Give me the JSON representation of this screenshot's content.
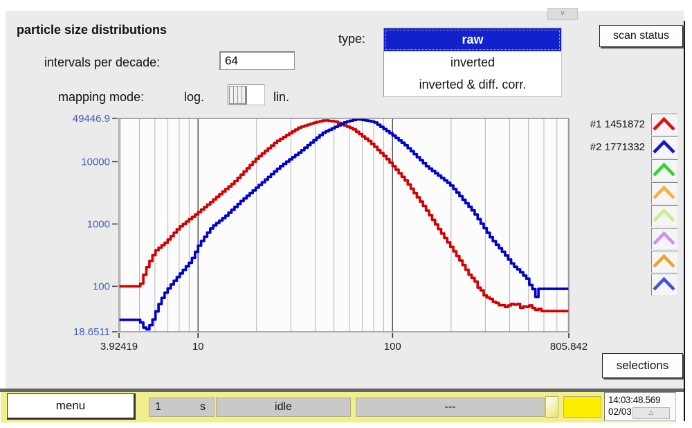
{
  "header": {
    "title": "particle size distributions",
    "intervals_label": "intervals per decade:",
    "intervals_value": "64",
    "mapping_label": "mapping mode:",
    "mapping_left": "log.",
    "mapping_right": "lin.",
    "type_label": "type:",
    "type_options": [
      {
        "label": "raw",
        "selected": true
      },
      {
        "label": "inverted",
        "selected": false
      },
      {
        "label": "inverted & diff. corr.",
        "selected": false
      }
    ],
    "scan_status_button": "scan status",
    "scroll_chevron": "∨"
  },
  "legend": {
    "entries": [
      {
        "label": "#1 1451872",
        "color": "#dd1111"
      },
      {
        "label": "#2 1771332",
        "color": "#1515c0"
      },
      {
        "label": "",
        "color": "#2fd52f"
      },
      {
        "label": "",
        "color": "#f5b042"
      },
      {
        "label": "",
        "color": "#cdeb8f"
      },
      {
        "label": "",
        "color": "#cf8ef0"
      },
      {
        "label": "",
        "color": "#eaa42c"
      },
      {
        "label": "",
        "color": "#4253d8"
      }
    ]
  },
  "selections_button": "selections",
  "statusbar": {
    "menu_button": "menu",
    "interval_value": "1",
    "interval_unit": "s",
    "state_value": "idle",
    "info_value": "---",
    "time": "14:03:48.569",
    "date": "02/03",
    "collapse_glyph": "△"
  },
  "chart_data": {
    "type": "line",
    "subtype": "stepped-histogram",
    "x_scale": "log",
    "y_scale": "log",
    "x_range": [
      3.92419,
      805.842
    ],
    "y_range": [
      18.6511,
      49446.9
    ],
    "x_tick_values": [
      3.92419,
      10,
      100,
      805.842
    ],
    "x_tick_labels": [
      "3.92419",
      "10",
      "100",
      "805.842"
    ],
    "y_tick_values": [
      49446.9,
      10000,
      1000,
      100,
      18.6511
    ],
    "y_tick_labels": [
      "49446.9",
      "10000",
      "1000",
      "100",
      "18.6511"
    ],
    "grid": "vertical log decades, minors gray, majors dark at 10 and 100",
    "legend_position": "right",
    "steps_per_decade": 64,
    "axis_label_color_y": "#4060bb",
    "axis_label_color_x": "#1a1a1a",
    "series": [
      {
        "name": "#1 1451872",
        "color": "#d40000",
        "points": [
          [
            3.92419,
            100
          ],
          [
            5.05,
            100
          ],
          [
            5.2,
            118
          ],
          [
            5.35,
            160
          ],
          [
            5.6,
            225
          ],
          [
            6.1,
            370
          ],
          [
            6.9,
            510
          ],
          [
            8.1,
            890
          ],
          [
            10,
            1480
          ],
          [
            12.2,
            2480
          ],
          [
            15.6,
            4800
          ],
          [
            20,
            10900
          ],
          [
            25.5,
            21000
          ],
          [
            33.5,
            35400
          ],
          [
            40.2,
            42500
          ],
          [
            45.3,
            46200
          ],
          [
            51.4,
            44000
          ],
          [
            63.2,
            33600
          ],
          [
            77.5,
            20700
          ],
          [
            95,
            10900
          ],
          [
            119,
            4800
          ],
          [
            144,
            2070
          ],
          [
            174,
            845
          ],
          [
            208,
            373
          ],
          [
            256,
            141
          ],
          [
            301,
            74
          ],
          [
            341,
            55
          ],
          [
            385,
            48
          ],
          [
            434,
            53
          ],
          [
            471,
            44
          ],
          [
            509,
            49
          ],
          [
            538,
            42
          ],
          [
            563,
            46
          ],
          [
            585,
            40
          ],
          [
            805.842,
            40
          ]
        ]
      },
      {
        "name": "#2 1771332",
        "color": "#0000cc",
        "points": [
          [
            3.92419,
            29
          ],
          [
            5.05,
            29
          ],
          [
            5.3,
            22
          ],
          [
            5.5,
            20
          ],
          [
            5.85,
            26
          ],
          [
            6.3,
            48
          ],
          [
            6.75,
            74
          ],
          [
            7.2,
            98
          ],
          [
            7.7,
            127
          ],
          [
            8.25,
            164
          ],
          [
            9.3,
            254
          ],
          [
            10.3,
            482
          ],
          [
            11.9,
            891
          ],
          [
            14,
            1343
          ],
          [
            16.9,
            2355
          ],
          [
            20,
            3733
          ],
          [
            26.9,
            8500
          ],
          [
            33.5,
            14100
          ],
          [
            44.3,
            28900
          ],
          [
            58.2,
            43700
          ],
          [
            66.9,
            48200
          ],
          [
            81,
            43700
          ],
          [
            100,
            27400
          ],
          [
            118,
            18200
          ],
          [
            151,
            8500
          ],
          [
            199,
            4345
          ],
          [
            262,
            1600
          ],
          [
            326,
            577
          ],
          [
            376,
            345
          ],
          [
            418,
            224
          ],
          [
            482,
            141
          ],
          [
            537,
            91
          ],
          [
            552,
            69
          ],
          [
            560,
            91
          ],
          [
            805.842,
            91
          ]
        ]
      }
    ]
  }
}
